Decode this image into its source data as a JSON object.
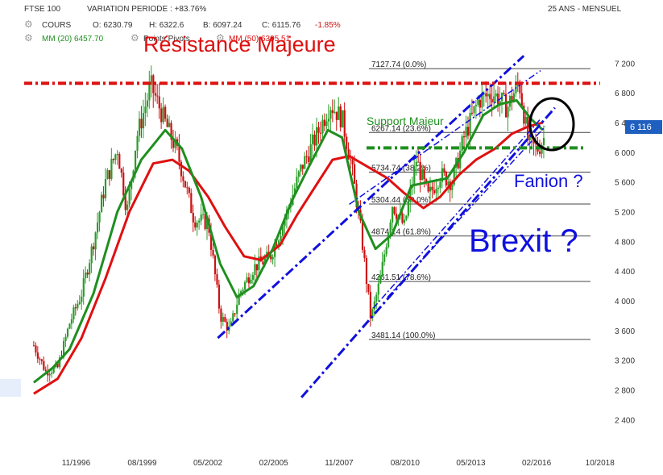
{
  "header": {
    "symbol": "FTSE 100",
    "variation": "VARIATION PERIODE : +83.76%",
    "period": "25 ANS - MENSUEL",
    "cours_label": "COURS",
    "open": "O: 6230.79",
    "high": "H: 6322.6",
    "low": "B: 6097.24",
    "close": "C: 6115.76",
    "change": "-1.85%",
    "mm20": "MM (20) 6457.70",
    "pivots": "Points Pivots",
    "mm50": "MM (50) 6395.51"
  },
  "last_price_badge": "6 116",
  "colors": {
    "up": "#2a9d2a",
    "down": "#cc1111",
    "mm20": "#1f8f1f",
    "mm50": "#e01010",
    "channel": "#1010dd",
    "resistance": "#dd1111",
    "support": "#1f8f1f",
    "badge": "#1f5fbf"
  },
  "annotations": {
    "resistance": "Résistance Majeure",
    "support": "Support Majeur",
    "fanion": "Fanion ?",
    "brexit": "Brexit ?"
  },
  "chart_data": {
    "type": "candlestick",
    "title": "FTSE 100",
    "x_ticks": [
      "11/1996",
      "08/1999",
      "05/2002",
      "02/2005",
      "11/2007",
      "08/2010",
      "05/2013",
      "02/2016",
      "10/2018"
    ],
    "y_ticks": [
      "2 400",
      "2 800",
      "3 200",
      "3 600",
      "4 000",
      "4 400",
      "4 800",
      "5 200",
      "5 600",
      "6 000",
      "6 400",
      "6 800",
      "7 200"
    ],
    "ylim": [
      2100,
      7400
    ],
    "xlim": [
      1994.6,
      2019.2
    ],
    "resistance_level": 6930,
    "support_level": 6060,
    "fibonacci": [
      {
        "label": "7127.74  (0.0%)",
        "value": 7127.74
      },
      {
        "label": "6267.14  (23.6%)",
        "value": 6267.14
      },
      {
        "label": "5734.74  (38.2%)",
        "value": 5734.74
      },
      {
        "label": "5304.44  (50.0%)",
        "value": 5304.44
      },
      {
        "label": "4874.14  (61.8%)",
        "value": 4874.14
      },
      {
        "label": "4261.51  (78.6%)",
        "value": 4261.51
      },
      {
        "label": "3481.14  (100.0%)",
        "value": 3481.14
      }
    ],
    "price_path": [
      [
        1995.0,
        3400
      ],
      [
        1995.5,
        3050
      ],
      [
        1996.0,
        3100
      ],
      [
        1996.5,
        3700
      ],
      [
        1997.0,
        4100
      ],
      [
        1997.5,
        4800
      ],
      [
        1998.0,
        5600
      ],
      [
        1998.5,
        6050
      ],
      [
        1998.9,
        5200
      ],
      [
        1999.3,
        6200
      ],
      [
        1999.9,
        6900
      ],
      [
        2000.5,
        6400
      ],
      [
        2001.0,
        6000
      ],
      [
        2001.7,
        5100
      ],
      [
        2002.3,
        5050
      ],
      [
        2002.8,
        3800
      ],
      [
        2003.2,
        3600
      ],
      [
        2003.6,
        4100
      ],
      [
        2004.2,
        4450
      ],
      [
        2004.9,
        4600
      ],
      [
        2005.5,
        5100
      ],
      [
        2006.2,
        5800
      ],
      [
        2006.8,
        6200
      ],
      [
        2007.4,
        6650
      ],
      [
        2007.9,
        6450
      ],
      [
        2008.3,
        5800
      ],
      [
        2008.7,
        4900
      ],
      [
        2009.1,
        3750
      ],
      [
        2009.5,
        4300
      ],
      [
        2010.0,
        5300
      ],
      [
        2010.5,
        5000
      ],
      [
        2011.0,
        5900
      ],
      [
        2011.5,
        5400
      ],
      [
        2012.0,
        5700
      ],
      [
        2012.5,
        5600
      ],
      [
        2013.0,
        6200
      ],
      [
        2013.6,
        6700
      ],
      [
        2014.2,
        6800
      ],
      [
        2014.8,
        6600
      ],
      [
        2015.3,
        6950
      ],
      [
        2015.7,
        6100
      ],
      [
        2016.1,
        6050
      ],
      [
        2016.4,
        6230
      ]
    ],
    "mm20_path": [
      [
        1995.0,
        2900
      ],
      [
        1995.8,
        3100
      ],
      [
        1996.5,
        3350
      ],
      [
        1997.5,
        4100
      ],
      [
        1998.5,
        5200
      ],
      [
        1999.5,
        5900
      ],
      [
        2000.5,
        6300
      ],
      [
        2001.2,
        6050
      ],
      [
        2002.0,
        5400
      ],
      [
        2002.8,
        4500
      ],
      [
        2003.5,
        4050
      ],
      [
        2004.2,
        4200
      ],
      [
        2005.0,
        4700
      ],
      [
        2005.8,
        5350
      ],
      [
        2006.5,
        5800
      ],
      [
        2007.3,
        6300
      ],
      [
        2007.9,
        6200
      ],
      [
        2008.6,
        5200
      ],
      [
        2009.3,
        4700
      ],
      [
        2010.0,
        4900
      ],
      [
        2010.8,
        5550
      ],
      [
        2011.5,
        5600
      ],
      [
        2012.3,
        5650
      ],
      [
        2013.0,
        6000
      ],
      [
        2013.8,
        6500
      ],
      [
        2014.5,
        6650
      ],
      [
        2015.2,
        6700
      ],
      [
        2015.8,
        6450
      ],
      [
        2016.3,
        6300
      ]
    ],
    "mm50_path": [
      [
        1995.0,
        2750
      ],
      [
        1996.0,
        2950
      ],
      [
        1997.0,
        3500
      ],
      [
        1998.0,
        4300
      ],
      [
        1999.0,
        5200
      ],
      [
        2000.0,
        5850
      ],
      [
        2000.8,
        5900
      ],
      [
        2001.5,
        5750
      ],
      [
        2002.3,
        5400
      ],
      [
        2003.0,
        5000
      ],
      [
        2003.8,
        4600
      ],
      [
        2004.5,
        4550
      ],
      [
        2005.3,
        4750
      ],
      [
        2006.0,
        5150
      ],
      [
        2006.8,
        5550
      ],
      [
        2007.5,
        5900
      ],
      [
        2008.2,
        5950
      ],
      [
        2009.0,
        5800
      ],
      [
        2009.8,
        5650
      ],
      [
        2010.5,
        5450
      ],
      [
        2011.3,
        5250
      ],
      [
        2012.0,
        5400
      ],
      [
        2012.8,
        5700
      ],
      [
        2013.5,
        5900
      ],
      [
        2014.3,
        6050
      ],
      [
        2015.0,
        6250
      ],
      [
        2015.7,
        6350
      ],
      [
        2016.3,
        6400
      ]
    ],
    "channel_lines": [
      {
        "from": [
          2002.7,
          3500
        ],
        "to": [
          2015.5,
          7300
        ],
        "style": "heavy"
      },
      {
        "from": [
          2006.2,
          2700
        ],
        "to": [
          2016.8,
          6600
        ],
        "style": "heavy"
      },
      {
        "from": [
          2008.2,
          5300
        ],
        "to": [
          2016.2,
          7100
        ],
        "style": "light"
      },
      {
        "from": [
          2009.2,
          3900
        ],
        "to": [
          2016.2,
          6450
        ],
        "style": "light"
      },
      {
        "from": [
          2009.8,
          4050
        ],
        "to": [
          2016.4,
          6350
        ],
        "style": "light"
      }
    ]
  }
}
